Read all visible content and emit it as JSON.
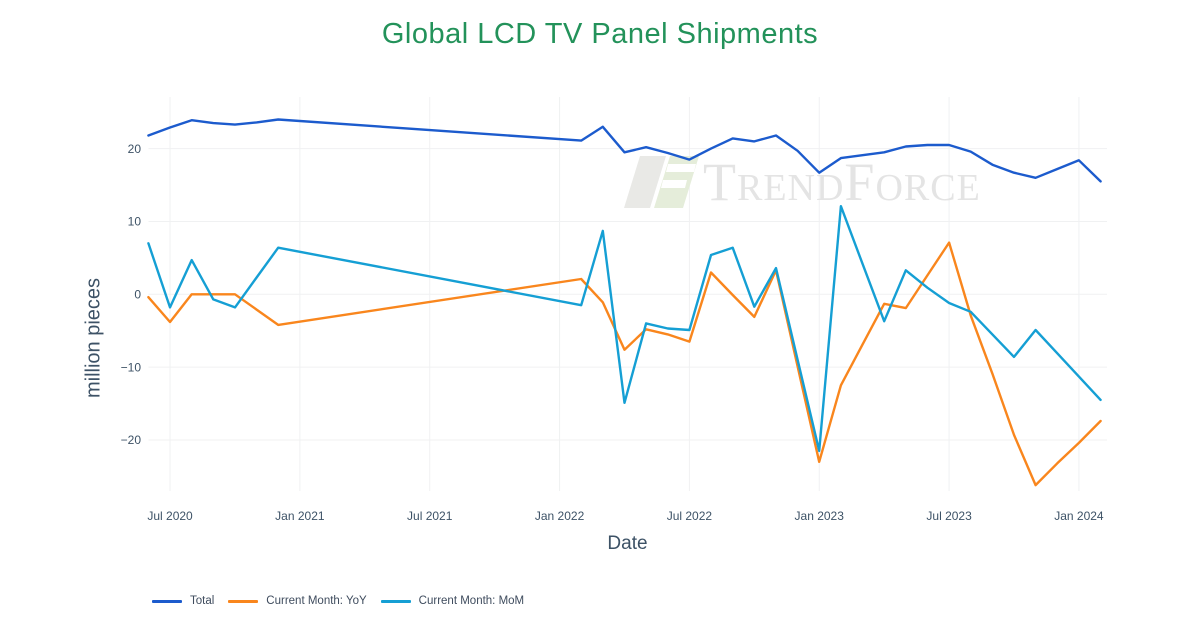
{
  "title": "Global LCD TV Panel Shipments",
  "watermark": {
    "text": "TrendForce"
  },
  "legend": {
    "items": [
      {
        "label": "Total"
      },
      {
        "label": "Current Month: YoY"
      },
      {
        "label": "Current Month: MoM"
      }
    ]
  },
  "chart_data": {
    "type": "line",
    "title": "Global LCD TV Panel Shipments",
    "xlabel": "Date",
    "ylabel": "million pieces",
    "ylim": [
      -28,
      27.5
    ],
    "grid": true,
    "legend_position": "bottom-left",
    "x_ticks": [
      {
        "month": "2020-07",
        "label": "Jul 2020"
      },
      {
        "month": "2021-01",
        "label": "Jan 2021"
      },
      {
        "month": "2021-07",
        "label": "Jul 2021"
      },
      {
        "month": "2022-01",
        "label": "Jan 2022"
      },
      {
        "month": "2022-07",
        "label": "Jul 2022"
      },
      {
        "month": "2023-01",
        "label": "Jan 2023"
      },
      {
        "month": "2023-07",
        "label": "Jul 2023"
      },
      {
        "month": "2024-01",
        "label": "Jan 2024"
      }
    ],
    "y_ticks": [
      {
        "value": 20,
        "label": "20"
      },
      {
        "value": 10,
        "label": "10"
      },
      {
        "value": 0,
        "label": "0"
      },
      {
        "value": -10,
        "label": "−10"
      },
      {
        "value": -20,
        "label": "−20"
      }
    ],
    "series": [
      {
        "name": "Total",
        "color": "#1c5bcd",
        "points": [
          [
            "2020-06",
            21.8
          ],
          [
            "2020-07",
            22.9
          ],
          [
            "2020-08",
            23.9
          ],
          [
            "2020-09",
            23.5
          ],
          [
            "2020-10",
            23.3
          ],
          [
            "2020-11",
            23.6
          ],
          [
            "2020-12",
            24.0
          ],
          [
            "2022-02",
            21.1
          ],
          [
            "2022-03",
            23.0
          ],
          [
            "2022-04",
            19.5
          ],
          [
            "2022-05",
            20.2
          ],
          [
            "2022-06",
            19.4
          ],
          [
            "2022-07",
            18.5
          ],
          [
            "2022-08",
            20.0
          ],
          [
            "2022-09",
            21.4
          ],
          [
            "2022-10",
            21.0
          ],
          [
            "2022-11",
            21.8
          ],
          [
            "2022-12",
            19.7
          ],
          [
            "2023-01",
            16.7
          ],
          [
            "2023-02",
            18.7
          ],
          [
            "2023-03",
            19.1
          ],
          [
            "2023-04",
            19.5
          ],
          [
            "2023-05",
            20.3
          ],
          [
            "2023-06",
            20.5
          ],
          [
            "2023-07",
            20.5
          ],
          [
            "2023-08",
            19.6
          ],
          [
            "2023-09",
            17.8
          ],
          [
            "2023-10",
            16.7
          ],
          [
            "2023-11",
            16.0
          ],
          [
            "2023-12",
            17.2
          ],
          [
            "2024-01",
            18.4
          ],
          [
            "2024-02",
            15.5
          ]
        ]
      },
      {
        "name": "Current Month: YoY",
        "color": "#f9861d",
        "points": [
          [
            "2020-06",
            -0.4
          ],
          [
            "2020-07",
            -3.8
          ],
          [
            "2020-08",
            0.0
          ],
          [
            "2020-09",
            0.0
          ],
          [
            "2020-10",
            0.0
          ],
          [
            "2020-11",
            -2.1
          ],
          [
            "2020-12",
            -4.2
          ],
          [
            "2022-02",
            2.1
          ],
          [
            "2022-03",
            -1.1
          ],
          [
            "2022-04",
            -7.6
          ],
          [
            "2022-05",
            -4.8
          ],
          [
            "2022-06",
            -5.5
          ],
          [
            "2022-07",
            -6.5
          ],
          [
            "2022-08",
            3.0
          ],
          [
            "2022-09",
            -0.1
          ],
          [
            "2022-10",
            -3.1
          ],
          [
            "2022-11",
            3.3
          ],
          [
            "2022-12",
            -9.9
          ],
          [
            "2023-01",
            -23.0
          ],
          [
            "2023-02",
            -12.5
          ],
          [
            "2023-03",
            -6.9
          ],
          [
            "2023-04",
            -1.3
          ],
          [
            "2023-05",
            -1.9
          ],
          [
            "2023-06",
            2.6
          ],
          [
            "2023-07",
            7.1
          ],
          [
            "2023-08",
            -2.9
          ],
          [
            "2023-09",
            -10.9
          ],
          [
            "2023-10",
            -19.3
          ],
          [
            "2023-11",
            -26.2
          ],
          [
            "2023-12",
            -23.2
          ],
          [
            "2024-01",
            -20.4
          ],
          [
            "2024-02",
            -17.4
          ]
        ]
      },
      {
        "name": "Current Month: MoM",
        "color": "#159fd4",
        "points": [
          [
            "2020-06",
            7.0
          ],
          [
            "2020-07",
            -1.8
          ],
          [
            "2020-08",
            4.7
          ],
          [
            "2020-09",
            -0.7
          ],
          [
            "2020-10",
            -1.8
          ],
          [
            "2020-11",
            2.3
          ],
          [
            "2020-12",
            6.4
          ],
          [
            "2022-02",
            -1.5
          ],
          [
            "2022-03",
            8.7
          ],
          [
            "2022-04",
            -14.9
          ],
          [
            "2022-05",
            -4.0
          ],
          [
            "2022-06",
            -4.7
          ],
          [
            "2022-07",
            -4.9
          ],
          [
            "2022-08",
            5.4
          ],
          [
            "2022-09",
            6.4
          ],
          [
            "2022-10",
            -1.7
          ],
          [
            "2022-11",
            3.6
          ],
          [
            "2022-12",
            -9.0
          ],
          [
            "2023-01",
            -21.5
          ],
          [
            "2023-02",
            12.1
          ],
          [
            "2023-03",
            4.2
          ],
          [
            "2023-04",
            -3.7
          ],
          [
            "2023-05",
            3.3
          ],
          [
            "2023-06",
            0.9
          ],
          [
            "2023-07",
            -1.2
          ],
          [
            "2023-08",
            -2.4
          ],
          [
            "2023-09",
            -5.5
          ],
          [
            "2023-10",
            -8.6
          ],
          [
            "2023-11",
            -4.9
          ],
          [
            "2023-12",
            -8.1
          ],
          [
            "2024-01",
            -11.3
          ],
          [
            "2024-02",
            -14.5
          ]
        ]
      }
    ]
  }
}
